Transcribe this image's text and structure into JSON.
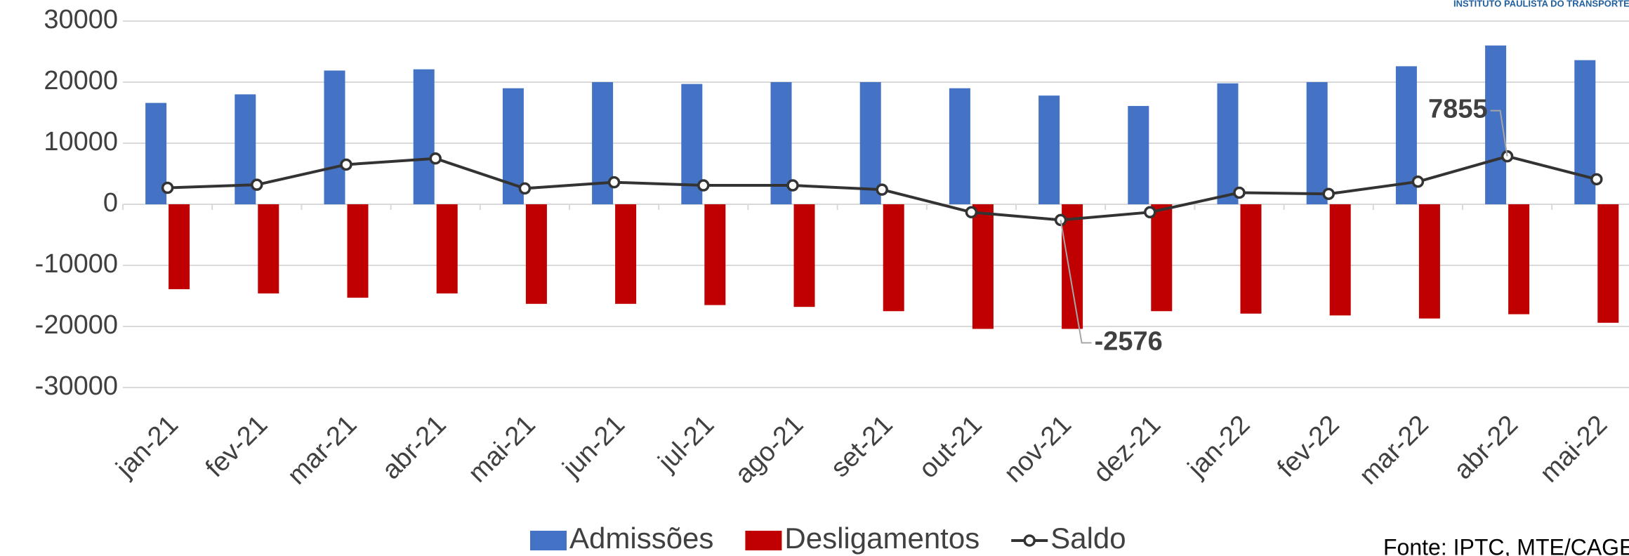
{
  "chart_data": {
    "type": "bar_line",
    "logo_text": "INSTITUTO PAULISTA DO TRANSPORTE DE",
    "source": "Fonte: IPTC, MTE/CAGED",
    "categories": [
      "jan-21",
      "fev-21",
      "mar-21",
      "abr-21",
      "mai-21",
      "jun-21",
      "jul-21",
      "ago-21",
      "set-21",
      "out-21",
      "nov-21",
      "dez-21",
      "jan-22",
      "fev-22",
      "mar-22",
      "abr-22",
      "mai-22"
    ],
    "series": [
      {
        "name": "Admissões",
        "type": "bar",
        "color": "#4472c4",
        "values": [
          16600,
          18000,
          21900,
          22100,
          19000,
          20000,
          19700,
          20000,
          20000,
          19000,
          17800,
          16100,
          19800,
          20000,
          22600,
          26000,
          23600
        ]
      },
      {
        "name": "Desligamentos",
        "type": "bar",
        "color": "#c00000",
        "values": [
          -13900,
          -14600,
          -15300,
          -14600,
          -16300,
          -16300,
          -16500,
          -16800,
          -17500,
          -20400,
          -20400,
          -17500,
          -17900,
          -18200,
          -18700,
          -18000,
          -19400
        ]
      },
      {
        "name": "Saldo",
        "type": "line",
        "color": "#333333",
        "values": [
          2700,
          3200,
          6500,
          7500,
          2600,
          3600,
          3100,
          3100,
          2400,
          -1300,
          -2576,
          -1300,
          1900,
          1700,
          3700,
          7855,
          4100
        ]
      }
    ],
    "ylim": [
      -30000,
      30000
    ],
    "yticks": [
      -30000,
      -20000,
      -10000,
      0,
      10000,
      20000,
      30000
    ],
    "grid": true,
    "legend": "bottom"
  }
}
